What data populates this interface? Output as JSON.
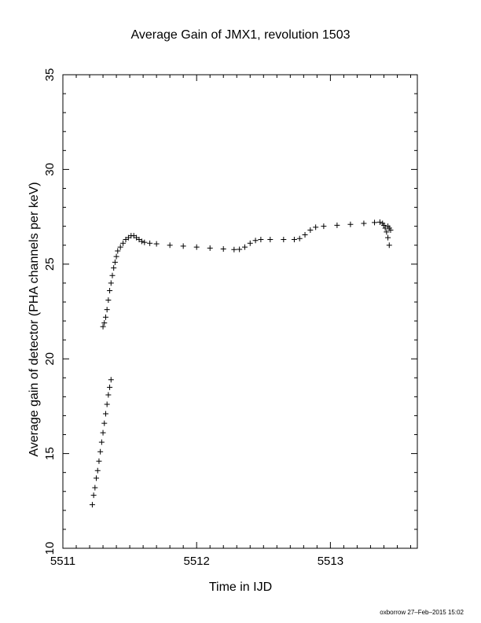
{
  "chart_data": {
    "type": "scatter",
    "title": "Average Gain of JMX1, revolution 1503",
    "xlabel": "Time in IJD",
    "ylabel": "Average gain of detector (PHA channels per keV)",
    "xlim": [
      5511,
      5513.65
    ],
    "ylim": [
      10,
      35
    ],
    "xticks": [
      5511,
      5512,
      5513
    ],
    "yticks": [
      10,
      15,
      20,
      25,
      30,
      35
    ],
    "xtick_labels": [
      "5511",
      "5512",
      "5513"
    ],
    "ytick_labels": [
      "10",
      "15",
      "20",
      "25",
      "30",
      "35"
    ],
    "grid": false,
    "marker": "plus",
    "marker_color": "#000000",
    "series": [
      {
        "points": [
          [
            5511.22,
            12.3
          ],
          [
            5511.23,
            12.8
          ],
          [
            5511.24,
            13.2
          ],
          [
            5511.25,
            13.7
          ],
          [
            5511.26,
            14.1
          ],
          [
            5511.27,
            14.6
          ],
          [
            5511.28,
            15.1
          ],
          [
            5511.29,
            15.6
          ],
          [
            5511.3,
            16.1
          ],
          [
            5511.31,
            16.6
          ],
          [
            5511.32,
            17.1
          ],
          [
            5511.33,
            17.6
          ],
          [
            5511.34,
            18.1
          ],
          [
            5511.35,
            18.5
          ],
          [
            5511.36,
            18.9
          ],
          [
            5511.3,
            21.7
          ],
          [
            5511.31,
            21.9
          ],
          [
            5511.32,
            22.2
          ],
          [
            5511.33,
            22.6
          ],
          [
            5511.34,
            23.1
          ],
          [
            5511.35,
            23.6
          ],
          [
            5511.36,
            24.0
          ],
          [
            5511.37,
            24.4
          ],
          [
            5511.38,
            24.8
          ],
          [
            5511.39,
            25.1
          ],
          [
            5511.4,
            25.4
          ],
          [
            5511.41,
            25.7
          ],
          [
            5511.43,
            25.9
          ],
          [
            5511.45,
            26.1
          ],
          [
            5511.47,
            26.3
          ],
          [
            5511.49,
            26.4
          ],
          [
            5511.51,
            26.5
          ],
          [
            5511.53,
            26.5
          ],
          [
            5511.55,
            26.4
          ],
          [
            5511.57,
            26.3
          ],
          [
            5511.59,
            26.2
          ],
          [
            5511.61,
            26.15
          ],
          [
            5511.65,
            26.1
          ],
          [
            5511.7,
            26.07
          ],
          [
            5511.8,
            26.0
          ],
          [
            5511.9,
            25.95
          ],
          [
            5512.0,
            25.9
          ],
          [
            5512.1,
            25.85
          ],
          [
            5512.2,
            25.8
          ],
          [
            5512.28,
            25.77
          ],
          [
            5512.32,
            25.78
          ],
          [
            5512.36,
            25.9
          ],
          [
            5512.4,
            26.1
          ],
          [
            5512.44,
            26.25
          ],
          [
            5512.48,
            26.3
          ],
          [
            5512.55,
            26.3
          ],
          [
            5512.65,
            26.3
          ],
          [
            5512.73,
            26.3
          ],
          [
            5512.77,
            26.35
          ],
          [
            5512.81,
            26.55
          ],
          [
            5512.85,
            26.8
          ],
          [
            5512.89,
            26.95
          ],
          [
            5512.95,
            27.0
          ],
          [
            5513.05,
            27.05
          ],
          [
            5513.15,
            27.1
          ],
          [
            5513.25,
            27.15
          ],
          [
            5513.33,
            27.2
          ],
          [
            5513.37,
            27.22
          ],
          [
            5513.39,
            27.15
          ],
          [
            5513.4,
            27.05
          ],
          [
            5513.41,
            26.9
          ],
          [
            5513.42,
            26.7
          ],
          [
            5513.43,
            26.4
          ],
          [
            5513.44,
            26.0
          ],
          [
            5513.43,
            27.0
          ],
          [
            5513.44,
            26.9
          ],
          [
            5513.45,
            26.8
          ]
        ]
      }
    ]
  },
  "footer": {
    "credit": "oxborrow 27–Feb–2015 15:02"
  }
}
